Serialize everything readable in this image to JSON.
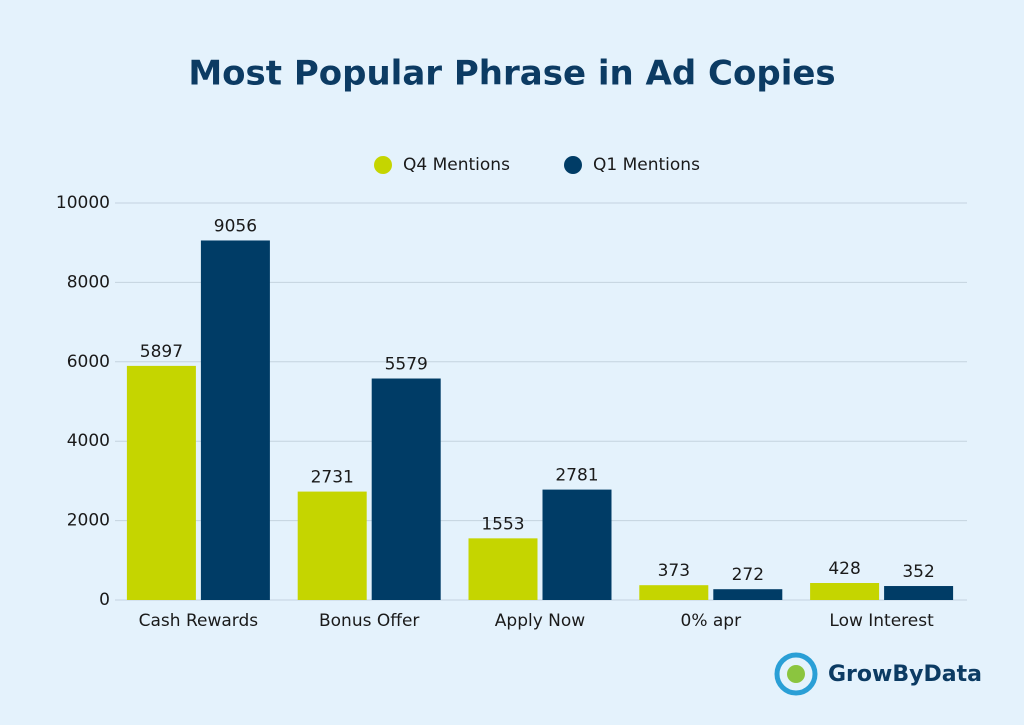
{
  "chart_data": {
    "type": "bar",
    "title": "Most Popular Phrase in Ad Copies",
    "categories": [
      "Cash Rewards",
      "Bonus Offer",
      "Apply Now",
      "0% apr",
      "Low Interest"
    ],
    "series": [
      {
        "name": "Q4 Mentions",
        "color": "#c5d500",
        "values": [
          5897,
          2731,
          1553,
          373,
          428
        ]
      },
      {
        "name": "Q1 Mentions",
        "color": "#003c66",
        "values": [
          9056,
          5579,
          2781,
          272,
          352
        ]
      }
    ],
    "ylim": [
      0,
      10000
    ],
    "yticks": [
      0,
      2000,
      4000,
      6000,
      8000,
      10000
    ],
    "grid": true,
    "legend": "top"
  },
  "brand": "GrowByData"
}
